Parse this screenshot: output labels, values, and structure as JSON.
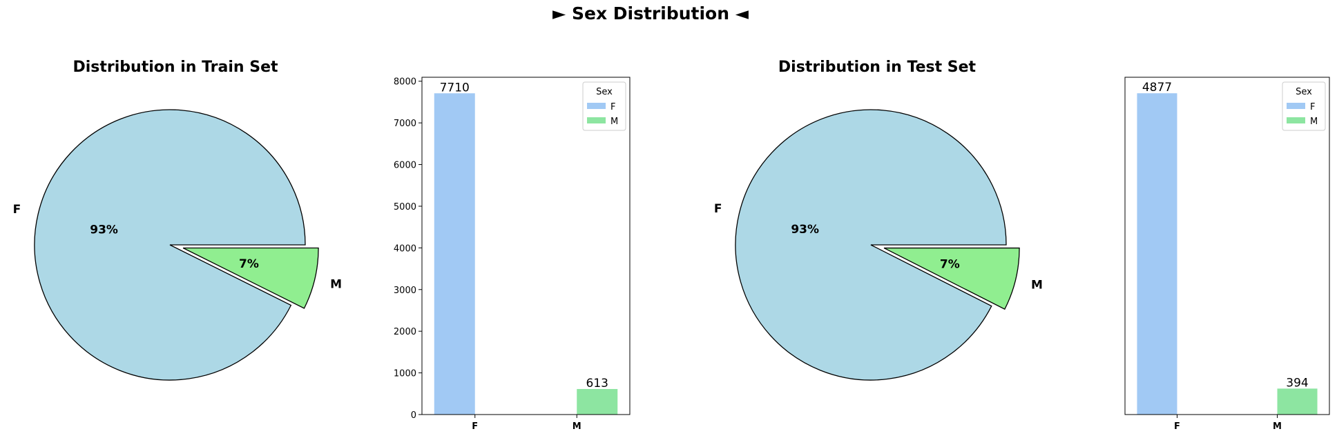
{
  "figure": {
    "suptitle": "► Sex Distribution ◄"
  },
  "colors": {
    "pie_f": "#add8e6",
    "pie_m": "#90ee90",
    "bar_f": "#a1c9f4",
    "bar_m": "#8de5a1",
    "edge": "#000000"
  },
  "chart_data": [
    {
      "type": "pie",
      "title": "Distribution in Train Set",
      "labels": [
        "F",
        "M"
      ],
      "values": [
        7710,
        613
      ],
      "pct_labels": [
        "93%",
        "7%"
      ],
      "explode": [
        0,
        0.1
      ]
    },
    {
      "type": "bar",
      "title": "",
      "categories": [
        "F",
        "M"
      ],
      "series": [
        {
          "name": "F",
          "values": [
            7710,
            0
          ]
        },
        {
          "name": "M",
          "values": [
            0,
            613
          ]
        }
      ],
      "data_labels": [
        "7710",
        "613"
      ],
      "yticks": [
        0,
        1000,
        2000,
        3000,
        4000,
        5000,
        6000,
        7000,
        8000
      ],
      "ylim": [
        0,
        8095
      ],
      "show_yticks": true,
      "legend": {
        "title": "Sex",
        "position": "top-right",
        "entries": [
          "F",
          "M"
        ]
      },
      "grid": false
    },
    {
      "type": "pie",
      "title": "Distribution in Test Set",
      "labels": [
        "F",
        "M"
      ],
      "values": [
        4877,
        394
      ],
      "pct_labels": [
        "93%",
        "7%"
      ],
      "explode": [
        0,
        0.1
      ]
    },
    {
      "type": "bar",
      "title": "",
      "categories": [
        "F",
        "M"
      ],
      "series": [
        {
          "name": "F",
          "values": [
            4877,
            0
          ]
        },
        {
          "name": "M",
          "values": [
            0,
            394
          ]
        }
      ],
      "data_labels": [
        "4877",
        "394"
      ],
      "yticks": [],
      "ylim": [
        0,
        5120
      ],
      "show_yticks": false,
      "legend": {
        "title": "Sex",
        "position": "top-right",
        "entries": [
          "F",
          "M"
        ]
      },
      "grid": false
    }
  ]
}
